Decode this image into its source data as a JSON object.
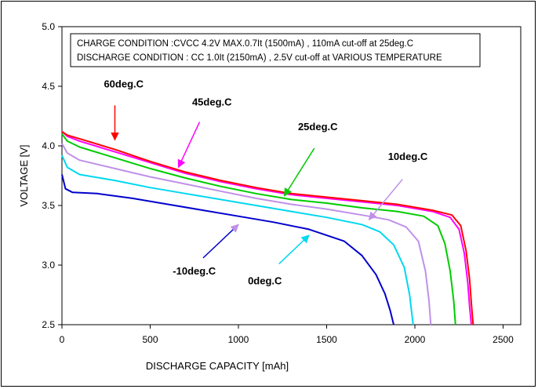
{
  "chart_data": {
    "type": "line",
    "title": "",
    "xlabel": "DISCHARGE CAPACITY  [mAh]",
    "ylabel": "VOLTAGE  [V]",
    "xlim": [
      0,
      2600
    ],
    "ylim": [
      2.5,
      5.0
    ],
    "x_ticks": [
      0,
      500,
      1000,
      1500,
      2000,
      2500
    ],
    "y_ticks": [
      "2.5",
      "3.0",
      "3.5",
      "4.0",
      "4.5",
      "5.0"
    ],
    "grid": false,
    "annotations": [
      "CHARGE CONDITION :CVCC 4.2V MAX.0.7It (1500mA) , 110mA cut-off at  25deg.C",
      "DISCHARGE CONDITION : CC 1.0It (2150mA) , 2.5V cut-off at  VARIOUS TEMPERATURE"
    ],
    "series": [
      {
        "name": "-10deg.C",
        "color": "#0000cc",
        "x": [
          0,
          20,
          60,
          200,
          400,
          600,
          800,
          1000,
          1200,
          1400,
          1600,
          1700,
          1780,
          1830,
          1860,
          1880
        ],
        "y": [
          3.76,
          3.64,
          3.61,
          3.6,
          3.56,
          3.51,
          3.46,
          3.41,
          3.36,
          3.3,
          3.2,
          3.08,
          2.92,
          2.76,
          2.62,
          2.5
        ]
      },
      {
        "name": "0deg.C",
        "color": "#00d8f0",
        "x": [
          0,
          30,
          100,
          300,
          500,
          700,
          900,
          1100,
          1300,
          1500,
          1700,
          1800,
          1880,
          1940,
          1970,
          1990
        ],
        "y": [
          3.92,
          3.82,
          3.76,
          3.71,
          3.65,
          3.6,
          3.55,
          3.5,
          3.45,
          3.4,
          3.34,
          3.28,
          3.17,
          2.98,
          2.75,
          2.5
        ]
      },
      {
        "name": "10deg.C",
        "color": "#c090e8",
        "x": [
          0,
          30,
          100,
          300,
          500,
          700,
          900,
          1100,
          1300,
          1500,
          1700,
          1850,
          1950,
          2020,
          2060,
          2080,
          2090
        ],
        "y": [
          4.02,
          3.94,
          3.88,
          3.81,
          3.74,
          3.68,
          3.62,
          3.56,
          3.51,
          3.47,
          3.42,
          3.38,
          3.32,
          3.2,
          2.95,
          2.7,
          2.5
        ]
      },
      {
        "name": "25deg.C",
        "color": "#00cc00",
        "x": [
          0,
          30,
          100,
          300,
          500,
          700,
          900,
          1100,
          1300,
          1500,
          1700,
          1900,
          2050,
          2130,
          2170,
          2200,
          2220,
          2230
        ],
        "y": [
          4.1,
          4.04,
          3.99,
          3.9,
          3.81,
          3.73,
          3.66,
          3.6,
          3.55,
          3.52,
          3.48,
          3.45,
          3.41,
          3.33,
          3.18,
          2.95,
          2.7,
          2.5
        ]
      },
      {
        "name": "45deg.C",
        "color": "#ff00ff",
        "x": [
          0,
          30,
          100,
          300,
          500,
          700,
          900,
          1100,
          1300,
          1500,
          1700,
          1900,
          2100,
          2200,
          2250,
          2280,
          2300,
          2310,
          2320
        ],
        "y": [
          4.12,
          4.08,
          4.04,
          3.95,
          3.86,
          3.77,
          3.7,
          3.64,
          3.59,
          3.56,
          3.53,
          3.5,
          3.45,
          3.4,
          3.3,
          3.1,
          2.85,
          2.65,
          2.5
        ]
      },
      {
        "name": "60deg.C",
        "color": "#ff0000",
        "x": [
          0,
          30,
          100,
          300,
          500,
          700,
          900,
          1100,
          1300,
          1500,
          1700,
          1900,
          2100,
          2210,
          2260,
          2290,
          2310,
          2320,
          2330
        ],
        "y": [
          4.12,
          4.09,
          4.06,
          3.97,
          3.87,
          3.78,
          3.71,
          3.65,
          3.6,
          3.57,
          3.54,
          3.51,
          3.46,
          3.42,
          3.33,
          3.12,
          2.88,
          2.68,
          2.5
        ]
      }
    ],
    "series_labels": [
      {
        "name": "60deg.C",
        "lx": 350,
        "ly": 4.49,
        "ax": 300,
        "ay": 4.34,
        "bx": 300,
        "by": 4.05
      },
      {
        "name": "45deg.C",
        "lx": 850,
        "ly": 4.34,
        "ax": 780,
        "ay": 4.2,
        "bx": 660,
        "by": 3.82
      },
      {
        "name": "25deg.C",
        "lx": 1450,
        "ly": 4.13,
        "ax": 1430,
        "ay": 3.98,
        "bx": 1260,
        "by": 3.58
      },
      {
        "name": "10deg.C",
        "lx": 1960,
        "ly": 3.88,
        "ax": 1930,
        "ay": 3.72,
        "bx": 1740,
        "by": 3.38
      },
      {
        "name": "-10deg.C",
        "lx": 750,
        "ly": 2.92,
        "ax": 800,
        "ay": 3.06,
        "bx": 1000,
        "by": 3.34
      },
      {
        "name": "0deg.C",
        "lx": 1150,
        "ly": 2.84,
        "ax": 1230,
        "ay": 3.01,
        "bx": 1400,
        "by": 3.25
      }
    ]
  }
}
